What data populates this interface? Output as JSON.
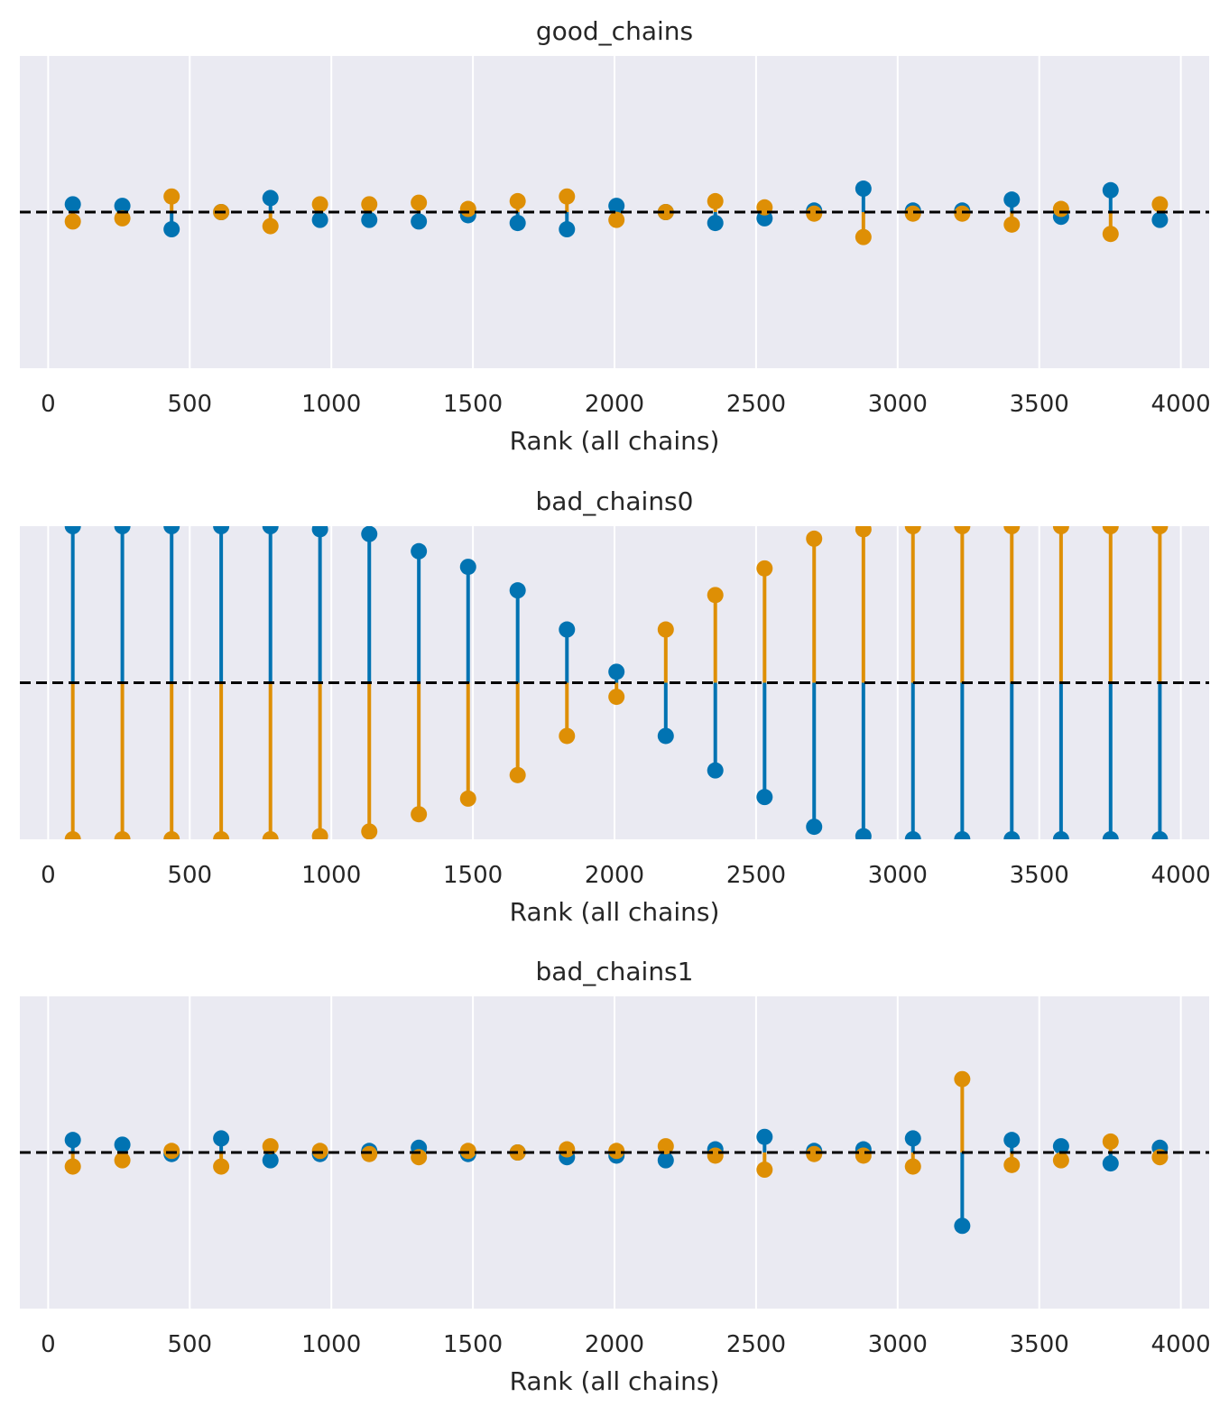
{
  "colors": {
    "background": "#EAEAF2",
    "grid": "#FFFFFF",
    "chain0": "#0173B2",
    "chain1": "#DE8F05",
    "reference_line": "#000000"
  },
  "chart_data": [
    {
      "type": "rank_vlines",
      "title": "good_chains",
      "xlabel": "Rank (all chains)",
      "ylabel": "",
      "xlim": [
        -100,
        4100
      ],
      "ylim": [
        -1,
        1
      ],
      "xticks": [
        0,
        500,
        1000,
        1500,
        2000,
        2500,
        3000,
        3500,
        4000
      ],
      "grid": "x",
      "reference_line": 0,
      "x": [
        87,
        262,
        436,
        611,
        785,
        960,
        1134,
        1309,
        1483,
        1658,
        1832,
        2007,
        2181,
        2356,
        2530,
        2705,
        2879,
        3054,
        3228,
        3403,
        3577,
        3752,
        3926
      ],
      "series": [
        {
          "color_key": "chain0",
          "values": [
            0.05,
            0.04,
            -0.11,
            0.0,
            0.09,
            -0.05,
            -0.05,
            -0.06,
            -0.02,
            -0.07,
            -0.11,
            0.04,
            0.0,
            -0.07,
            -0.04,
            0.01,
            0.15,
            0.01,
            0.01,
            0.08,
            -0.03,
            0.14,
            -0.05
          ]
        },
        {
          "color_key": "chain1",
          "values": [
            -0.06,
            -0.04,
            0.1,
            0.0,
            -0.09,
            0.05,
            0.05,
            0.06,
            0.02,
            0.07,
            0.1,
            -0.05,
            0.0,
            0.07,
            0.03,
            -0.01,
            -0.16,
            -0.01,
            -0.01,
            -0.08,
            0.02,
            -0.14,
            0.05
          ]
        }
      ]
    },
    {
      "type": "rank_vlines",
      "title": "bad_chains0",
      "xlabel": "Rank (all chains)",
      "ylabel": "",
      "xlim": [
        -100,
        4100
      ],
      "ylim": [
        -1,
        1
      ],
      "xticks": [
        0,
        500,
        1000,
        1500,
        2000,
        2500,
        3000,
        3500,
        4000
      ],
      "grid": "x",
      "reference_line": 0,
      "x": [
        87,
        262,
        436,
        611,
        785,
        960,
        1134,
        1309,
        1483,
        1658,
        1832,
        2007,
        2181,
        2356,
        2530,
        2705,
        2879,
        3054,
        3228,
        3403,
        3577,
        3752,
        3926
      ],
      "series": [
        {
          "color_key": "chain0",
          "values": [
            1.0,
            1.0,
            1.0,
            1.0,
            1.0,
            0.98,
            0.95,
            0.84,
            0.74,
            0.59,
            0.34,
            0.07,
            -0.34,
            -0.56,
            -0.73,
            -0.92,
            -0.98,
            -1.0,
            -1.0,
            -1.0,
            -1.0,
            -1.0,
            -1.0
          ]
        },
        {
          "color_key": "chain1",
          "values": [
            -1.0,
            -1.0,
            -1.0,
            -1.0,
            -1.0,
            -0.98,
            -0.95,
            -0.84,
            -0.74,
            -0.59,
            -0.34,
            -0.09,
            0.34,
            0.56,
            0.73,
            0.92,
            0.98,
            1.0,
            1.0,
            1.0,
            1.0,
            1.0,
            1.0
          ]
        }
      ]
    },
    {
      "type": "rank_vlines",
      "title": "bad_chains1",
      "xlabel": "Rank (all chains)",
      "ylabel": "",
      "xlim": [
        -100,
        4100
      ],
      "ylim": [
        -1,
        1
      ],
      "xticks": [
        0,
        500,
        1000,
        1500,
        2000,
        2500,
        3000,
        3500,
        4000
      ],
      "grid": "x",
      "reference_line": 0,
      "x": [
        87,
        262,
        436,
        611,
        785,
        960,
        1134,
        1309,
        1483,
        1658,
        1832,
        2007,
        2181,
        2356,
        2530,
        2705,
        2879,
        3054,
        3228,
        3403,
        3577,
        3752,
        3926
      ],
      "series": [
        {
          "color_key": "chain0",
          "values": [
            0.08,
            0.05,
            -0.01,
            0.09,
            -0.05,
            -0.01,
            0.01,
            0.03,
            -0.01,
            0.0,
            -0.03,
            -0.02,
            -0.05,
            0.02,
            0.1,
            0.01,
            0.02,
            0.09,
            -0.47,
            0.08,
            0.04,
            -0.07,
            0.03
          ]
        },
        {
          "color_key": "chain1",
          "values": [
            -0.09,
            -0.05,
            0.01,
            -0.09,
            0.04,
            0.01,
            -0.01,
            -0.03,
            0.01,
            0.0,
            0.02,
            0.01,
            0.04,
            -0.02,
            -0.11,
            -0.01,
            -0.02,
            -0.09,
            0.47,
            -0.08,
            -0.05,
            0.07,
            -0.03
          ]
        }
      ]
    }
  ]
}
